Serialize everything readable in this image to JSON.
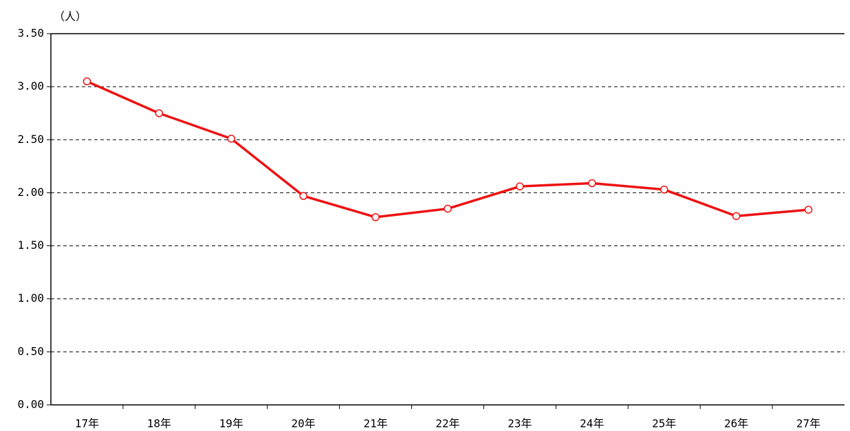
{
  "chart_data": {
    "type": "line",
    "y_label": "（人）",
    "categories": [
      "17年",
      "18年",
      "19年",
      "20年",
      "21年",
      "22年",
      "23年",
      "24年",
      "25年",
      "26年",
      "27年"
    ],
    "series": [
      {
        "name": "人数",
        "color": "#ee1111",
        "values": [
          3.05,
          2.75,
          2.51,
          1.97,
          1.77,
          1.85,
          2.06,
          2.09,
          2.03,
          1.78,
          1.84
        ]
      }
    ],
    "ylim": [
      0,
      3.5
    ],
    "yticks": [
      {
        "value": 0,
        "label": "0.00"
      },
      {
        "value": 0.5,
        "label": "0.50"
      },
      {
        "value": 1,
        "label": "1.00"
      },
      {
        "value": 1.5,
        "label": "1.50"
      },
      {
        "value": 2,
        "label": "2.00"
      },
      {
        "value": 2.5,
        "label": "2.50"
      },
      {
        "value": 3,
        "label": "3.00"
      },
      {
        "value": 3.5,
        "label": "3.50"
      }
    ],
    "grid": true
  }
}
